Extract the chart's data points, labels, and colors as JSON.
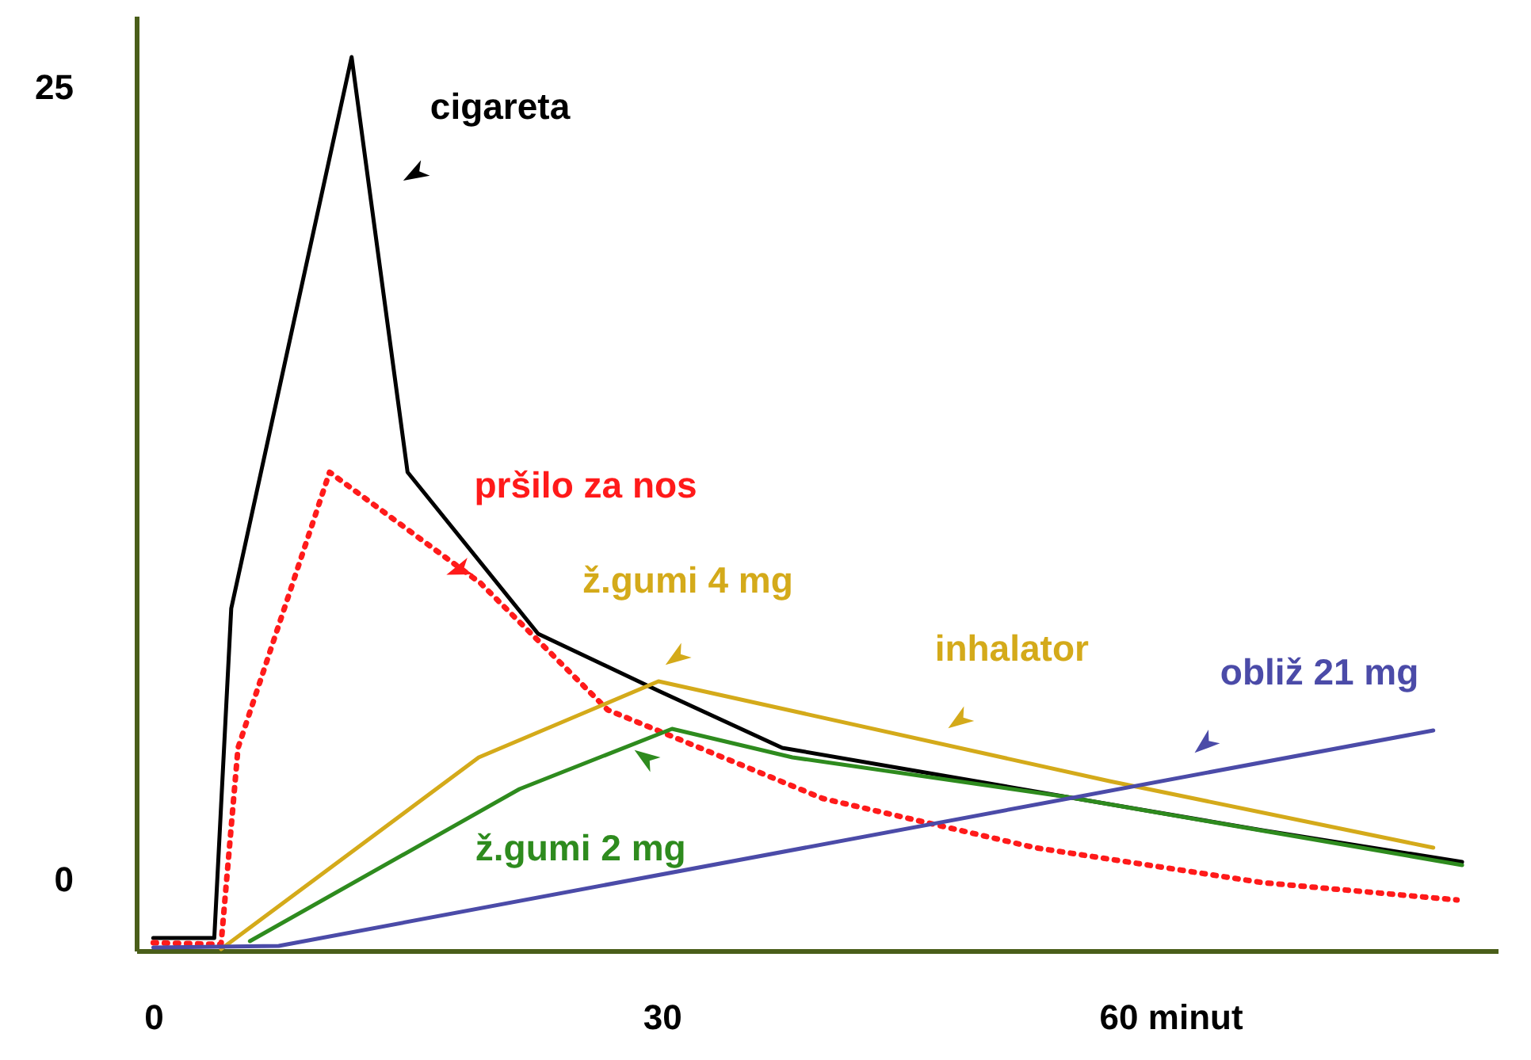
{
  "chart_data": {
    "type": "line",
    "xlim": [
      -1.0,
      79.3
    ],
    "ylim": [
      -2.25,
      27.25
    ],
    "xticks": [
      0,
      30,
      {
        "value": 60,
        "label": "60 minut"
      }
    ],
    "yticks": [
      0,
      25
    ],
    "grid": false,
    "marker": "none",
    "series": [
      {
        "color": "#000000",
        "x": [
          0,
          3.6,
          4.6,
          11.7,
          15.0,
          22.7,
          29.8,
          37.1,
          53.9,
          65.4,
          77.2
        ],
        "values": [
          -1.85,
          -1.85,
          8.55,
          25.95,
          12.85,
          7.75,
          5.95,
          4.15,
          2.6,
          1.55,
          0.55
        ]
      },
      {
        "color": "#ff1a1a",
        "line_style": "dotted",
        "x": [
          0,
          4.0,
          5.0,
          10.4,
          19.3,
          26.8,
          39.5,
          52.0,
          65.4,
          76.9
        ],
        "values": [
          -2.0,
          -2.05,
          4.15,
          12.85,
          9.35,
          5.35,
          2.55,
          1.0,
          -0.1,
          -0.65
        ]
      },
      {
        "color": "#d4aa1a",
        "x": [
          4.0,
          19.2,
          29.8,
          56.4,
          75.5
        ],
        "values": [
          -2.2,
          3.85,
          6.25,
          3.1,
          1.0
        ]
      },
      {
        "color": "#2e8b1e",
        "x": [
          5.7,
          21.6,
          30.6,
          37.7,
          53.9,
          77.2
        ],
        "values": [
          -1.95,
          2.85,
          4.75,
          3.85,
          2.6,
          0.45
        ]
      },
      {
        "color": "#4b4ba8",
        "x": [
          0,
          7.4,
          75.5
        ],
        "values": [
          -2.15,
          -2.1,
          4.7
        ]
      }
    ],
    "annotations": [
      {
        "text": "cigareta",
        "x": 12.5,
        "y": 22.8
      },
      {
        "text": "pršilo za nos",
        "x": 18.0,
        "y": 9.9
      },
      {
        "text": "ž.gumi 4 mg",
        "x": 29.8,
        "y": 6.25
      },
      {
        "text": "inhalator",
        "x": 47.5,
        "y": 4.15
      },
      {
        "text": "ž.gumi 2 mg",
        "x": 29.0,
        "y": 4.4
      },
      {
        "text": "obliž 21 mg",
        "x": 62.0,
        "y": 3.35
      }
    ]
  }
}
